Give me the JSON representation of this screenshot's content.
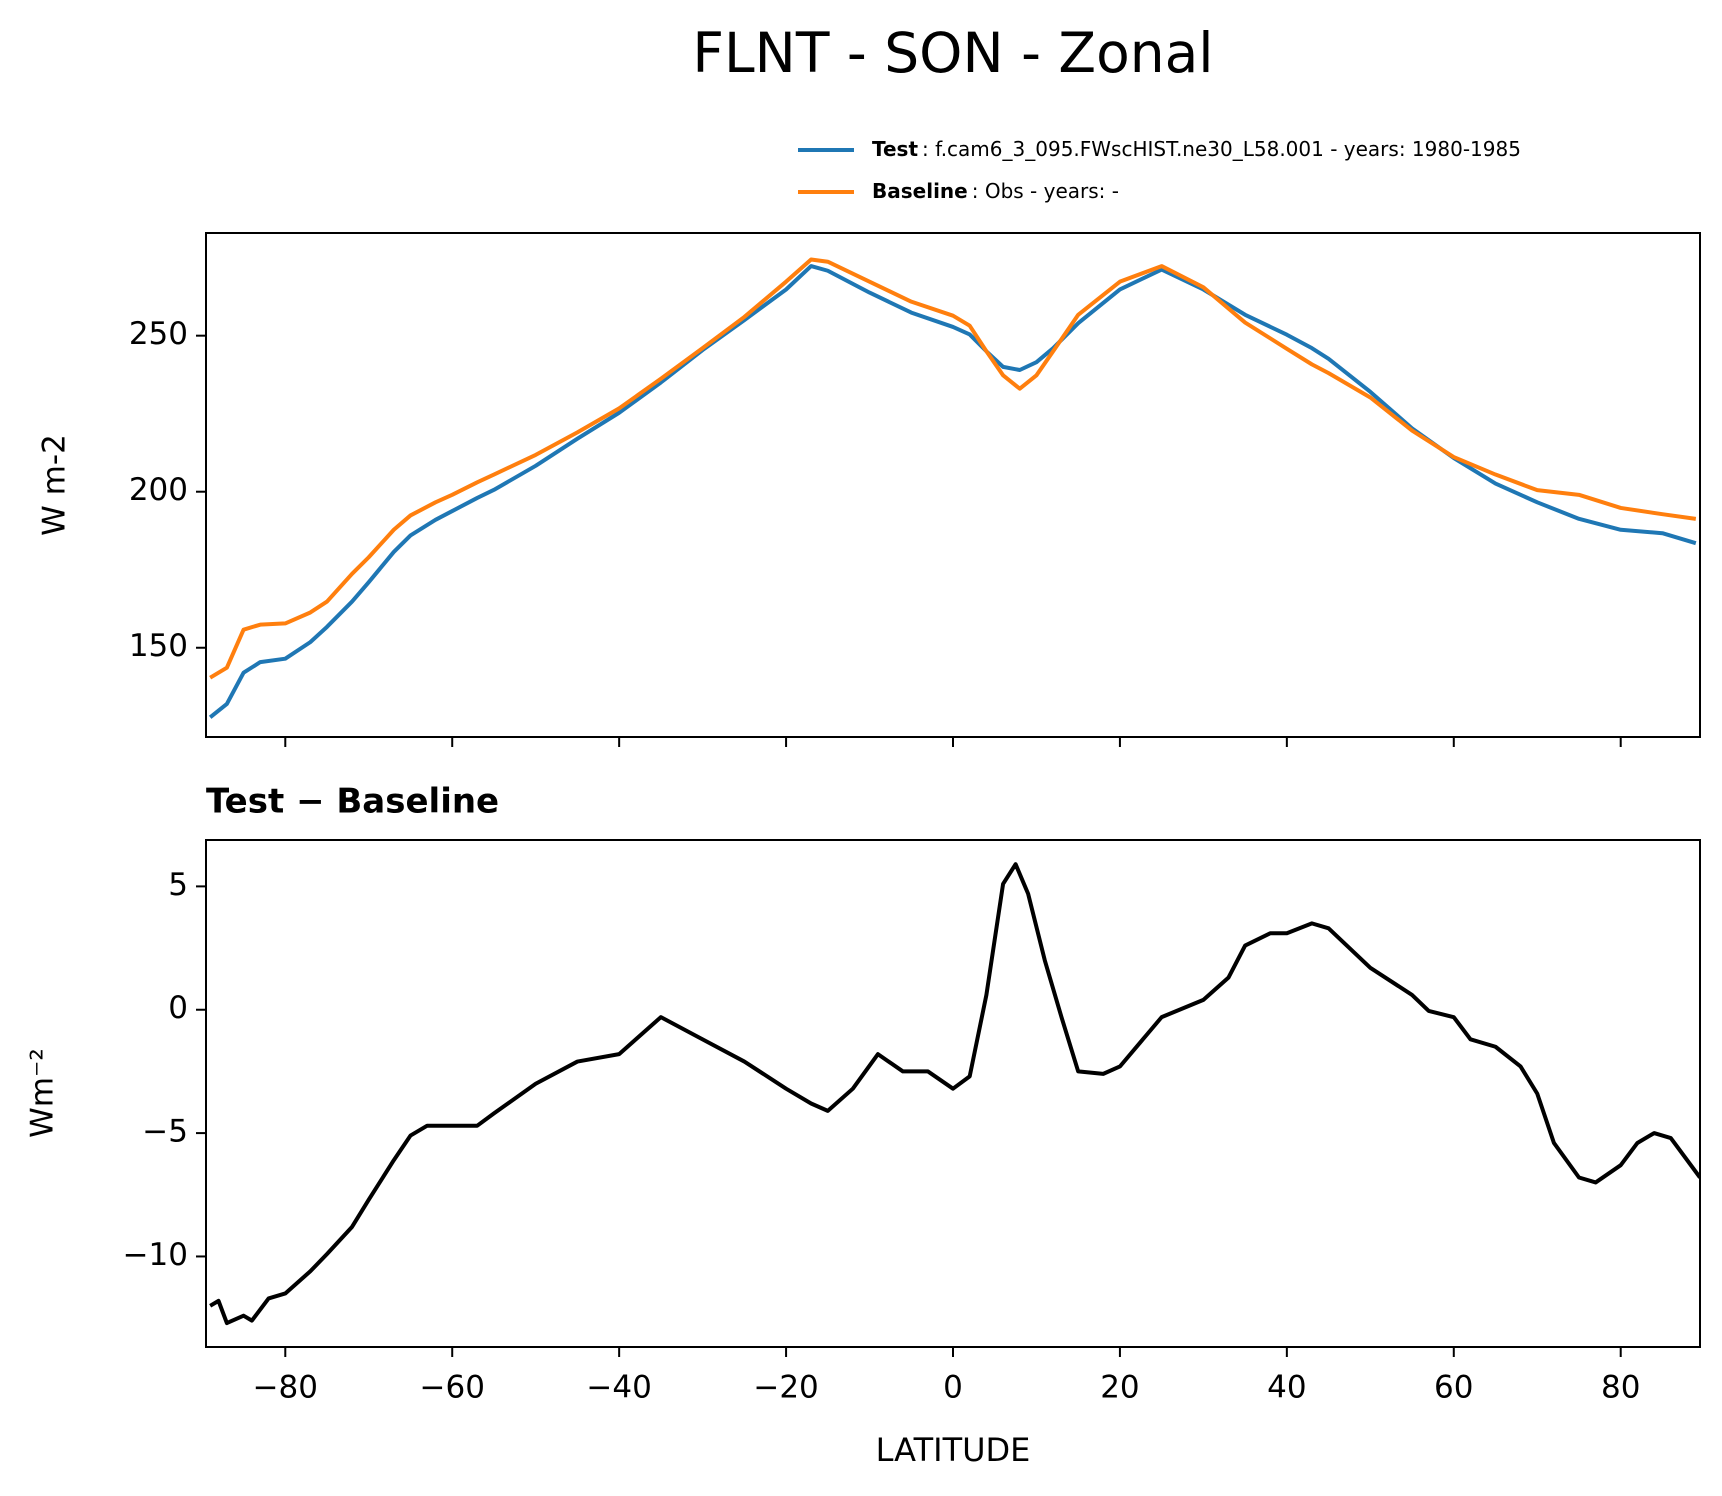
{
  "chart_data": [
    {
      "type": "line",
      "title": "FLNT - SON - Zonal",
      "ylabel": "W m-2",
      "x": [
        -89,
        -87,
        -85,
        -83,
        -80,
        -77,
        -75,
        -72,
        -70,
        -67,
        -65,
        -62,
        -60,
        -57,
        -55,
        -50,
        -45,
        -40,
        -35,
        -30,
        -25,
        -20,
        -17,
        -15,
        -10,
        -5,
        0,
        2,
        4,
        6,
        8,
        10,
        12,
        15,
        20,
        25,
        30,
        35,
        40,
        43,
        45,
        50,
        55,
        60,
        65,
        70,
        75,
        80,
        85,
        89
      ],
      "series": [
        {
          "name": "Test",
          "description": ": f.cam6_3_095.FWscHIST.ne30_L58.001 - years: 1980-1985",
          "color": "#1f77b4",
          "values": [
            127.7,
            132,
            142,
            145.4,
            146.5,
            151.8,
            156.7,
            164.8,
            171,
            180.7,
            186,
            191,
            193.8,
            198,
            200.6,
            208.3,
            217,
            225.3,
            235,
            245.4,
            255,
            264.8,
            272.3,
            270.8,
            263.8,
            257.4,
            252.8,
            250.4,
            245,
            240,
            239,
            241.5,
            246,
            254,
            264.8,
            271.2,
            264.8,
            256.7,
            250.3,
            246,
            242.6,
            232,
            220.3,
            210.8,
            202.6,
            196.6,
            191.3,
            187.8,
            186.7,
            183.5
          ]
        },
        {
          "name": "Baseline",
          "description": ": Obs - years: -",
          "color": "#ff7f0e",
          "values": [
            140.4,
            143.6,
            155.8,
            157.4,
            157.8,
            161.3,
            164.8,
            173.7,
            179,
            187.8,
            192.4,
            196.6,
            199,
            203,
            205.5,
            211.8,
            219,
            226.7,
            236.2,
            246,
            256,
            267.3,
            274.4,
            273.7,
            267.3,
            260.9,
            256.4,
            253.2,
            245,
            237.3,
            233,
            237.3,
            245,
            256.7,
            267.3,
            272.3,
            265.5,
            254.2,
            245.8,
            240.8,
            238,
            230.2,
            219.6,
            211.1,
            205.5,
            200.5,
            199,
            194.8,
            192.8,
            191.3
          ]
        }
      ],
      "xlim": [
        -89.5,
        89.5
      ],
      "xticks": [
        -80,
        -60,
        -40,
        -20,
        0,
        20,
        40,
        60,
        80
      ],
      "ylim": [
        121.4,
        282.9
      ],
      "yticks": [
        150,
        200,
        250
      ],
      "legend": "upper right"
    },
    {
      "type": "line",
      "title": "Test − Baseline",
      "ylabel": "Wm⁻²",
      "xlabel": "LATITUDE",
      "color": "#000000",
      "x": [
        -89,
        -88,
        -87,
        -85,
        -84,
        -82,
        -80,
        -77,
        -75,
        -72,
        -70,
        -67,
        -65,
        -63,
        -60,
        -57,
        -55,
        -50,
        -45,
        -40,
        -35,
        -30,
        -25,
        -20,
        -17,
        -15,
        -12,
        -9,
        -6,
        -3,
        0,
        2,
        4,
        6,
        7.5,
        9,
        11,
        13,
        15,
        18,
        20,
        25,
        30,
        33,
        35,
        38,
        40,
        43,
        45,
        50,
        55,
        57,
        60,
        62,
        65,
        68,
        70,
        72,
        75,
        77,
        80,
        82,
        84,
        86,
        89.5
      ],
      "values": [
        -12.0,
        -11.8,
        -12.7,
        -12.4,
        -12.6,
        -11.7,
        -11.5,
        -10.6,
        -9.9,
        -8.8,
        -7.7,
        -6.1,
        -5.1,
        -4.7,
        -4.7,
        -4.7,
        -4.2,
        -3.0,
        -2.1,
        -1.8,
        -0.3,
        -1.2,
        -2.1,
        -3.2,
        -3.8,
        -4.1,
        -3.2,
        -1.8,
        -2.5,
        -2.5,
        -3.2,
        -2.7,
        0.6,
        5.1,
        5.9,
        4.7,
        2.0,
        -0.3,
        -2.5,
        -2.6,
        -2.3,
        -0.3,
        0.4,
        1.3,
        2.6,
        3.1,
        3.1,
        3.5,
        3.3,
        1.7,
        0.6,
        -0.05,
        -0.3,
        -1.2,
        -1.5,
        -2.3,
        -3.4,
        -5.4,
        -6.8,
        -7.0,
        -6.3,
        -5.4,
        -5.0,
        -5.2,
        -6.8
      ],
      "xlim": [
        -89.5,
        89.5
      ],
      "xticks": [
        {
          "value": -80,
          "label": "−80"
        },
        {
          "value": -60,
          "label": "−60"
        },
        {
          "value": -40,
          "label": "−40"
        },
        {
          "value": -20,
          "label": "−20"
        },
        0,
        20,
        40,
        60,
        80
      ],
      "ylim": [
        -13.67,
        6.88
      ],
      "yticks": [
        {
          "value": -10,
          "label": "−10"
        },
        {
          "value": -5,
          "label": "−5"
        },
        0,
        5
      ]
    }
  ]
}
